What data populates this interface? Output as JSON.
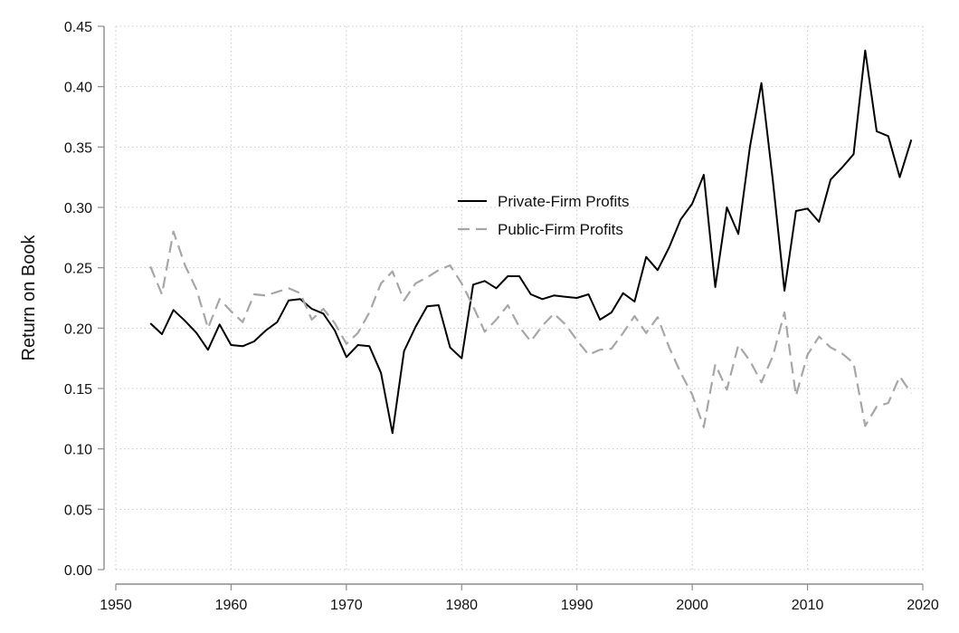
{
  "chart_data": {
    "type": "line",
    "title": "",
    "xlabel": "",
    "ylabel": "Return on Book",
    "xlim": [
      1950,
      2020
    ],
    "ylim": [
      0,
      0.45
    ],
    "xticks": [
      1950,
      1960,
      1970,
      1980,
      1990,
      2000,
      2010,
      2020
    ],
    "yticks": [
      "0.00",
      "0.05",
      "0.10",
      "0.15",
      "0.20",
      "0.25",
      "0.30",
      "0.35",
      "0.40",
      "0.45"
    ],
    "grid": true,
    "legend_position": "center-right",
    "series": [
      {
        "name": "Private-Firm Profits",
        "color": "#000000",
        "style": "solid",
        "x": [
          1953,
          1954,
          1955,
          1956,
          1957,
          1958,
          1959,
          1960,
          1961,
          1962,
          1963,
          1964,
          1965,
          1966,
          1967,
          1968,
          1969,
          1970,
          1971,
          1972,
          1973,
          1974,
          1975,
          1976,
          1977,
          1978,
          1979,
          1980,
          1981,
          1982,
          1983,
          1984,
          1985,
          1986,
          1987,
          1988,
          1989,
          1990,
          1991,
          1992,
          1993,
          1994,
          1995,
          1996,
          1997,
          1998,
          1999,
          2000,
          2001,
          2002,
          2003,
          2004,
          2005,
          2006,
          2007,
          2008,
          2009,
          2010,
          2011,
          2012,
          2013,
          2014,
          2015,
          2016,
          2017,
          2018,
          2019
        ],
        "values": [
          0.204,
          0.195,
          0.215,
          0.206,
          0.196,
          0.182,
          0.203,
          0.186,
          0.185,
          0.189,
          0.198,
          0.205,
          0.223,
          0.224,
          0.216,
          0.212,
          0.198,
          0.176,
          0.186,
          0.185,
          0.163,
          0.113,
          0.181,
          0.201,
          0.218,
          0.219,
          0.184,
          0.175,
          0.236,
          0.239,
          0.233,
          0.243,
          0.243,
          0.228,
          0.224,
          0.227,
          0.226,
          0.225,
          0.228,
          0.207,
          0.213,
          0.229,
          0.222,
          0.259,
          0.248,
          0.267,
          0.29,
          0.303,
          0.327,
          0.234,
          0.3,
          0.278,
          0.35,
          0.403,
          0.322,
          0.231,
          0.297,
          0.299,
          0.288,
          0.323,
          0.333,
          0.344,
          0.43,
          0.363,
          0.359,
          0.325,
          0.356
        ]
      },
      {
        "name": "Public-Firm Profits",
        "color": "#a6a6a6",
        "style": "dashed",
        "x": [
          1953,
          1954,
          1955,
          1956,
          1957,
          1958,
          1959,
          1960,
          1961,
          1962,
          1963,
          1964,
          1965,
          1966,
          1967,
          1968,
          1969,
          1970,
          1971,
          1972,
          1973,
          1974,
          1975,
          1976,
          1977,
          1978,
          1979,
          1980,
          1981,
          1982,
          1983,
          1984,
          1985,
          1986,
          1987,
          1988,
          1989,
          1990,
          1991,
          1992,
          1993,
          1994,
          1995,
          1996,
          1997,
          1998,
          1999,
          2000,
          2001,
          2002,
          2003,
          2004,
          2005,
          2006,
          2007,
          2008,
          2009,
          2010,
          2011,
          2012,
          2013,
          2014,
          2015,
          2016,
          2017,
          2018,
          2019
        ],
        "values": [
          0.251,
          0.228,
          0.28,
          0.252,
          0.232,
          0.2,
          0.224,
          0.214,
          0.205,
          0.228,
          0.227,
          0.23,
          0.233,
          0.229,
          0.207,
          0.216,
          0.204,
          0.187,
          0.196,
          0.213,
          0.237,
          0.247,
          0.223,
          0.237,
          0.242,
          0.248,
          0.252,
          0.237,
          0.218,
          0.197,
          0.207,
          0.219,
          0.201,
          0.189,
          0.202,
          0.212,
          0.203,
          0.19,
          0.178,
          0.182,
          0.183,
          0.196,
          0.21,
          0.196,
          0.209,
          0.184,
          0.163,
          0.145,
          0.118,
          0.17,
          0.149,
          0.186,
          0.173,
          0.155,
          0.177,
          0.213,
          0.144,
          0.178,
          0.193,
          0.184,
          0.179,
          0.171,
          0.119,
          0.135,
          0.138,
          0.16,
          0.146
        ]
      }
    ]
  }
}
